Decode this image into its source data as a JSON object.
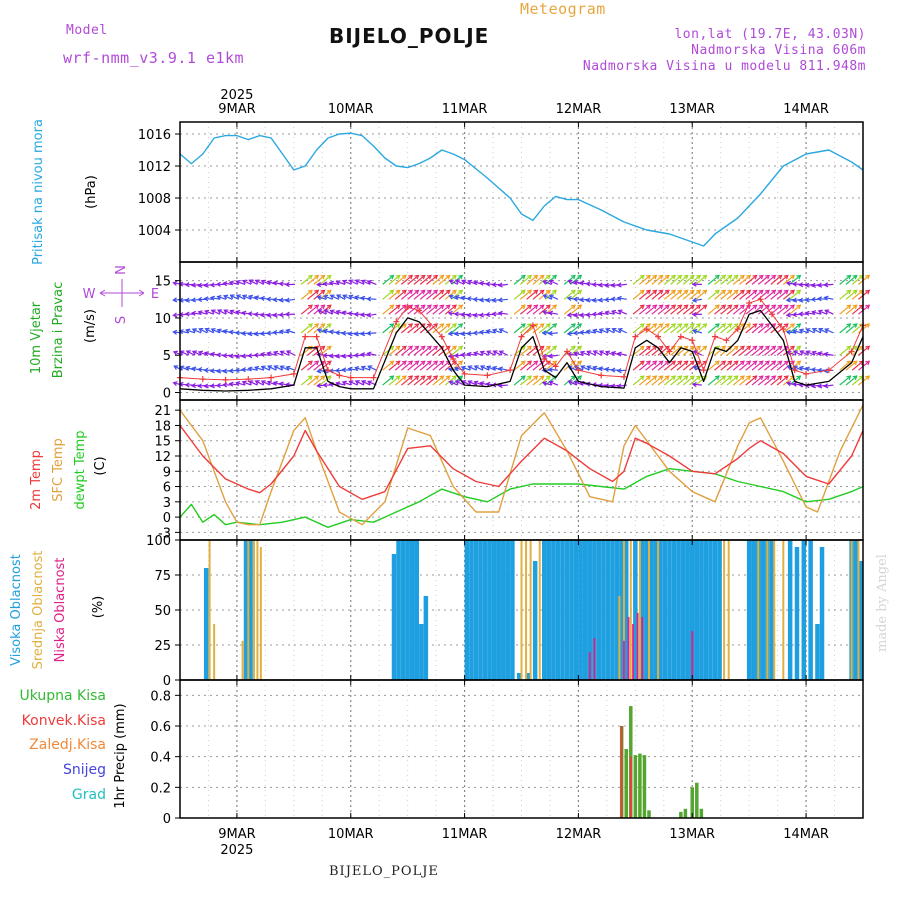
{
  "header": {
    "model_label": "Model",
    "model_name": "wrf-nmm_v3.9.1 e1km",
    "product": "Meteogram",
    "station": "BIJELO_POLJE",
    "coords": "lon,lat (19.7E, 43.03N)",
    "elevation": "Nadmorska Visina 606m",
    "model_elevation": "Nadmorska Visina u modelu 811.948m"
  },
  "footer": {
    "station": "BIJELO_POLJE",
    "signature": "made by Angel"
  },
  "colors": {
    "pressure": "#2aa8e0",
    "temp2m": "#ef3b3b",
    "sfc": "#e0a040",
    "dew": "#22cc22",
    "high_cloud": "#1e9fe0",
    "mid_cloud": "#e0b040",
    "low_cloud": "#e0208a",
    "wind_label": "#2a2",
    "purple": "#b04ad8"
  },
  "chart_data": [
    {
      "type": "line",
      "panel": "pressure",
      "ylabel": [
        "Pritisak na nivou mora",
        "(hPa)"
      ],
      "yticks": [
        1004,
        1008,
        1012,
        1016
      ],
      "ylim": [
        1000,
        1017.5
      ],
      "x_dates": [
        "9MAR",
        "10MAR",
        "11MAR",
        "12MAR",
        "13MAR",
        "14MAR"
      ],
      "year": "2025",
      "series": [
        {
          "x": [
            8.5,
            8.6,
            8.7,
            8.8,
            8.9,
            9.0,
            9.1,
            9.2,
            9.3,
            9.4,
            9.5,
            9.6,
            9.7,
            9.8,
            9.9,
            10.0,
            10.1,
            10.2,
            10.3,
            10.4,
            10.5,
            10.6,
            10.7,
            10.8,
            10.9,
            11.0,
            11.2,
            11.4,
            11.5,
            11.6,
            11.7,
            11.8,
            11.9,
            12.0,
            12.2,
            12.4,
            12.6,
            12.8,
            13.0,
            13.1,
            13.2,
            13.4,
            13.6,
            13.8,
            14.0,
            14.2,
            14.4,
            14.5
          ],
          "y": [
            1013.5,
            1012.3,
            1013.5,
            1015.5,
            1015.8,
            1015.8,
            1015.3,
            1015.8,
            1015.5,
            1013.5,
            1011.5,
            1012.0,
            1014.0,
            1015.5,
            1016.0,
            1016.1,
            1015.8,
            1014.5,
            1013.0,
            1012.0,
            1011.8,
            1012.3,
            1013.0,
            1014.0,
            1013.5,
            1012.8,
            1010.5,
            1008.0,
            1006.0,
            1005.2,
            1007.0,
            1008.2,
            1007.8,
            1007.8,
            1006.5,
            1005.0,
            1004.0,
            1003.5,
            1002.5,
            1002.0,
            1003.5,
            1005.5,
            1008.5,
            1012.0,
            1013.5,
            1014.0,
            1012.5,
            1011.5
          ]
        }
      ]
    },
    {
      "type": "line",
      "panel": "wind",
      "ylabel": [
        "10m Vjetar",
        "Brzina i Pravac",
        "(m/s)"
      ],
      "compass": [
        "N",
        "W",
        "E",
        "S"
      ],
      "yticks": [
        0,
        5,
        10,
        15
      ],
      "ylim": [
        -1,
        17.5
      ],
      "series": [
        {
          "name": "speed",
          "x": [
            8.5,
            8.7,
            8.9,
            9.1,
            9.3,
            9.5,
            9.6,
            9.7,
            9.8,
            9.9,
            10.0,
            10.2,
            10.4,
            10.5,
            10.6,
            10.8,
            10.9,
            11.0,
            11.2,
            11.4,
            11.5,
            11.6,
            11.7,
            11.8,
            11.9,
            12.0,
            12.2,
            12.4,
            12.5,
            12.6,
            12.7,
            12.8,
            12.9,
            13.0,
            13.1,
            13.2,
            13.3,
            13.4,
            13.5,
            13.6,
            13.7,
            13.8,
            13.9,
            14.0,
            14.2,
            14.4,
            14.5
          ],
          "y": [
            0.5,
            0.3,
            0.2,
            0.3,
            0.5,
            1.0,
            6.0,
            6.0,
            1.5,
            0.8,
            0.5,
            0.5,
            8.0,
            10.0,
            9.5,
            6.0,
            3.0,
            1.0,
            0.8,
            1.5,
            6.0,
            7.5,
            3.0,
            2.0,
            4.0,
            1.5,
            0.8,
            0.6,
            6.0,
            7.0,
            6.0,
            4.0,
            6.0,
            5.5,
            1.5,
            6.0,
            5.5,
            7.0,
            10.5,
            11.0,
            9.0,
            7.0,
            1.5,
            1.0,
            1.5,
            4.0,
            7.5
          ]
        }
      ]
    },
    {
      "type": "line",
      "panel": "temperature",
      "ylabel": [
        "2m Temp",
        "SFC Temp",
        "dewpt Temp",
        "(C)"
      ],
      "yticks": [
        -3,
        0,
        3,
        6,
        9,
        12,
        15,
        18,
        21
      ],
      "ylim": [
        -4.5,
        23
      ],
      "series": [
        {
          "name": "2m Temp",
          "x": [
            8.5,
            8.7,
            8.9,
            9.1,
            9.2,
            9.3,
            9.5,
            9.6,
            9.7,
            9.9,
            10.1,
            10.3,
            10.5,
            10.7,
            10.9,
            11.1,
            11.3,
            11.5,
            11.7,
            11.9,
            12.1,
            12.3,
            12.4,
            12.5,
            12.6,
            12.8,
            13.0,
            13.2,
            13.4,
            13.5,
            13.6,
            13.8,
            14.0,
            14.2,
            14.4,
            14.5
          ],
          "y": [
            18.0,
            12.0,
            7.5,
            5.5,
            4.8,
            6.5,
            12.0,
            17.0,
            13.0,
            6.0,
            3.5,
            5.0,
            13.5,
            14.0,
            9.5,
            7.0,
            6.0,
            11.0,
            15.5,
            13.0,
            9.5,
            7.0,
            9.0,
            15.5,
            14.5,
            12.0,
            9.0,
            8.5,
            11.5,
            13.5,
            15.0,
            12.5,
            8.0,
            6.5,
            12.0,
            17.0
          ]
        },
        {
          "name": "SFC Temp",
          "x": [
            8.5,
            8.7,
            8.9,
            9.0,
            9.1,
            9.2,
            9.3,
            9.5,
            9.6,
            9.7,
            9.9,
            10.1,
            10.3,
            10.5,
            10.7,
            10.9,
            11.1,
            11.3,
            11.5,
            11.7,
            11.9,
            12.1,
            12.3,
            12.4,
            12.5,
            12.6,
            12.8,
            13.0,
            13.1,
            13.2,
            13.4,
            13.5,
            13.6,
            13.8,
            14.0,
            14.1,
            14.3,
            14.5
          ],
          "y": [
            21.0,
            15.0,
            3.0,
            -1.0,
            -1.5,
            -1.5,
            5.0,
            17.0,
            19.5,
            13.0,
            1.0,
            -1.5,
            3.0,
            17.5,
            16.0,
            6.0,
            1.0,
            1.0,
            16.0,
            20.5,
            13.0,
            4.0,
            3.0,
            14.0,
            18.0,
            15.0,
            9.0,
            5.0,
            4.0,
            3.0,
            14.0,
            18.5,
            19.5,
            11.0,
            2.0,
            1.0,
            13.0,
            22.0
          ]
        },
        {
          "name": "dewpt Temp",
          "x": [
            8.5,
            8.6,
            8.7,
            8.8,
            8.9,
            9.0,
            9.2,
            9.4,
            9.6,
            9.8,
            10.0,
            10.2,
            10.4,
            10.6,
            10.8,
            11.0,
            11.2,
            11.4,
            11.6,
            11.8,
            12.0,
            12.2,
            12.4,
            12.6,
            12.8,
            13.0,
            13.2,
            13.4,
            13.6,
            13.8,
            14.0,
            14.2,
            14.4,
            14.5
          ],
          "y": [
            0.0,
            2.5,
            -1.0,
            0.5,
            -1.5,
            -1.0,
            -1.5,
            -1.0,
            0.0,
            -2.0,
            -0.5,
            -1.0,
            1.0,
            3.0,
            5.5,
            4.0,
            3.0,
            5.5,
            6.5,
            6.5,
            6.5,
            6.0,
            5.5,
            8.0,
            9.5,
            9.0,
            8.5,
            7.0,
            6.0,
            5.0,
            3.0,
            3.5,
            5.0,
            6.0
          ]
        }
      ]
    },
    {
      "type": "bar",
      "panel": "cloud",
      "ylabel": [
        "Visoka Oblacnost",
        "Srednja Oblacnost",
        "Niska Oblacnost",
        "(%)"
      ],
      "yticks": [
        0,
        25,
        50,
        75,
        100
      ],
      "ylim": [
        0,
        100
      ],
      "series": [
        {
          "name": "Visoka Oblacnost",
          "bars": [
            [
              8.73,
              80
            ],
            [
              9.08,
              100
            ],
            [
              9.12,
              100
            ],
            [
              10.38,
              90
            ],
            [
              10.42,
              100
            ],
            [
              10.46,
              100
            ],
            [
              10.5,
              100
            ],
            [
              10.54,
              100
            ],
            [
              10.58,
              100
            ],
            [
              10.62,
              40
            ],
            [
              10.66,
              60
            ],
            [
              11.02,
              100
            ],
            [
              11.06,
              100
            ],
            [
              11.1,
              100
            ],
            [
              11.14,
              100
            ],
            [
              11.18,
              100
            ],
            [
              11.22,
              100
            ],
            [
              11.26,
              100
            ],
            [
              11.3,
              100
            ],
            [
              11.34,
              100
            ],
            [
              11.38,
              100
            ],
            [
              11.42,
              100
            ],
            [
              11.48,
              5
            ],
            [
              11.56,
              5
            ],
            [
              11.62,
              85
            ],
            [
              11.7,
              100
            ],
            [
              11.74,
              100
            ],
            [
              11.78,
              100
            ],
            [
              11.82,
              100
            ],
            [
              11.86,
              100
            ],
            [
              11.9,
              100
            ],
            [
              11.94,
              100
            ],
            [
              11.98,
              100
            ],
            [
              12.02,
              100
            ],
            [
              12.06,
              100
            ],
            [
              12.1,
              100
            ],
            [
              12.14,
              100
            ],
            [
              12.18,
              100
            ],
            [
              12.22,
              100
            ],
            [
              12.26,
              100
            ],
            [
              12.3,
              100
            ],
            [
              12.34,
              100
            ],
            [
              12.38,
              100
            ],
            [
              12.42,
              100
            ],
            [
              12.5,
              100
            ],
            [
              12.56,
              100
            ],
            [
              12.6,
              100
            ],
            [
              12.64,
              100
            ],
            [
              12.68,
              100
            ],
            [
              12.72,
              100
            ],
            [
              12.76,
              100
            ],
            [
              12.8,
              100
            ],
            [
              12.84,
              100
            ],
            [
              12.88,
              100
            ],
            [
              12.92,
              100
            ],
            [
              12.96,
              100
            ],
            [
              13.0,
              100
            ],
            [
              13.04,
              100
            ],
            [
              13.08,
              100
            ],
            [
              13.12,
              100
            ],
            [
              13.16,
              100
            ],
            [
              13.2,
              100
            ],
            [
              13.24,
              100
            ],
            [
              13.5,
              100
            ],
            [
              13.54,
              100
            ],
            [
              13.58,
              100
            ],
            [
              13.62,
              100
            ],
            [
              13.66,
              100
            ],
            [
              13.7,
              100
            ],
            [
              13.86,
              100
            ],
            [
              13.92,
              95
            ],
            [
              13.98,
              100
            ],
            [
              14.04,
              100
            ],
            [
              14.1,
              40
            ],
            [
              14.14,
              95
            ],
            [
              14.4,
              100
            ],
            [
              14.44,
              100
            ],
            [
              14.48,
              85
            ]
          ]
        },
        {
          "name": "Srednja Oblacnost",
          "bars": [
            [
              8.76,
              100
            ],
            [
              8.8,
              40
            ],
            [
              9.05,
              28
            ],
            [
              9.1,
              100
            ],
            [
              9.15,
              100
            ],
            [
              9.18,
              100
            ],
            [
              9.21,
              95
            ],
            [
              11.5,
              100
            ],
            [
              11.54,
              100
            ],
            [
              11.58,
              100
            ],
            [
              11.66,
              100
            ],
            [
              12.36,
              60
            ],
            [
              12.4,
              100
            ],
            [
              12.46,
              100
            ],
            [
              12.54,
              100
            ],
            [
              12.62,
              100
            ],
            [
              12.7,
              100
            ],
            [
              13.28,
              100
            ],
            [
              13.32,
              100
            ],
            [
              13.58,
              100
            ],
            [
              13.66,
              100
            ],
            [
              13.72,
              100
            ],
            [
              13.8,
              100
            ],
            [
              14.4,
              100
            ],
            [
              14.46,
              100
            ]
          ]
        },
        {
          "name": "Niska Oblacnost",
          "bars": [
            [
              12.1,
              20
            ],
            [
              12.14,
              30
            ],
            [
              12.4,
              28
            ],
            [
              12.44,
              45
            ],
            [
              12.48,
              40
            ],
            [
              12.52,
              48
            ],
            [
              12.56,
              45
            ],
            [
              13.0,
              35
            ]
          ]
        }
      ]
    },
    {
      "type": "bar",
      "panel": "precip",
      "ylabel": [
        "1hr Precip (mm)"
      ],
      "legend": [
        "Ukupna Kisa",
        "Konvek.Kisa",
        "Zaledj.Kisa",
        "Snijeg",
        "Grad"
      ],
      "yticks": [
        0,
        0.2,
        0.4,
        0.6,
        0.8
      ],
      "ylim": [
        0,
        0.9
      ],
      "series": [
        {
          "name": "Ukupna Kisa",
          "bars": [
            [
              12.38,
              0.6
            ],
            [
              12.42,
              0.45
            ],
            [
              12.46,
              0.73
            ],
            [
              12.5,
              0.41
            ],
            [
              12.54,
              0.42
            ],
            [
              12.58,
              0.41
            ],
            [
              12.62,
              0.05
            ],
            [
              12.9,
              0.04
            ],
            [
              12.94,
              0.06
            ],
            [
              13.0,
              0.2
            ],
            [
              13.04,
              0.23
            ],
            [
              13.08,
              0.06
            ]
          ]
        },
        {
          "name": "Konvek.Kisa",
          "bars": [
            [
              12.38,
              0.6
            ],
            [
              12.46,
              0.4
            ]
          ]
        }
      ]
    }
  ]
}
